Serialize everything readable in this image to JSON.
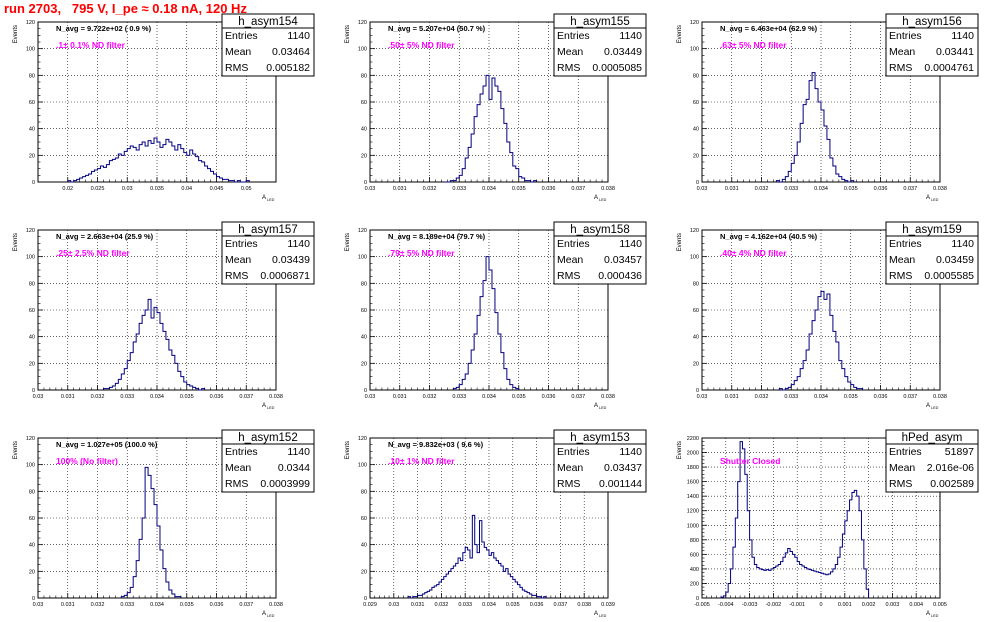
{
  "title": "run 2703,   795 V, I_pe ≈ 0.18 nA, 120 Hz",
  "axis_text": {
    "ylabel": "Events",
    "xlabel": "A",
    "xlabel_sub": "LED"
  },
  "colors": {
    "hist": "#000080",
    "annotation": "#ff00ff",
    "title": "#ff0000",
    "grid": "#000000"
  },
  "chart_data": [
    {
      "type": "histogram",
      "name": "h_asym154",
      "stats": {
        "entries_label": "Entries",
        "entries": "1140",
        "mean_label": "Mean",
        "mean": "0.03464",
        "rms_label": "RMS",
        "rms": "0.005182"
      },
      "navg": "N_avg = 9.722e+02 ( 0.9 %)",
      "filter": ".1± 0.1% ND filter",
      "xlim": [
        0.015,
        0.055
      ],
      "ylim": [
        0,
        120
      ],
      "xticks": [
        0.02,
        0.025,
        0.03,
        0.035,
        0.04,
        0.045,
        0.05
      ],
      "xtick_labels": [
        "0.02",
        "0.025",
        "0.03",
        "0.035",
        "0.04",
        "0.045",
        "0.05"
      ],
      "yticks": [
        0,
        20,
        40,
        60,
        80,
        100,
        120
      ],
      "ytick_labels": [
        "0",
        "20",
        "40",
        "60",
        "80",
        "100",
        "120"
      ],
      "bins": {
        "x0": 0.02,
        "width": 0.0005,
        "counts": [
          1,
          0,
          1,
          2,
          3,
          4,
          5,
          6,
          8,
          9,
          10,
          12,
          11,
          13,
          16,
          17,
          18,
          21,
          20,
          23,
          25,
          27,
          26,
          24,
          28,
          30,
          27,
          31,
          29,
          33,
          30,
          26,
          28,
          32,
          30,
          27,
          24,
          28,
          25,
          22,
          20,
          24,
          21,
          19,
          16,
          15,
          12,
          10,
          8,
          6,
          4,
          3,
          2,
          2,
          1,
          1,
          0,
          1,
          0,
          0,
          1
        ]
      }
    },
    {
      "type": "histogram",
      "name": "h_asym155",
      "stats": {
        "entries_label": "Entries",
        "entries": "1140",
        "mean_label": "Mean",
        "mean": "0.03449",
        "rms_label": "RMS",
        "rms": "0.0005085"
      },
      "navg": "N_avg = 5.207e+04 (50.7 %)",
      "filter": ".50± 5% ND filter",
      "xlim": [
        0.03,
        0.038
      ],
      "ylim": [
        0,
        120
      ],
      "xticks": [
        0.03,
        0.031,
        0.032,
        0.033,
        0.034,
        0.035,
        0.036,
        0.037,
        0.038
      ],
      "xtick_labels": [
        "0.03",
        "0.031",
        "0.032",
        "0.033",
        "0.034",
        "0.035",
        "0.036",
        "0.037",
        "0.038"
      ],
      "yticks": [
        0,
        20,
        40,
        60,
        80,
        100,
        120
      ],
      "ytick_labels": [
        "0",
        "20",
        "40",
        "60",
        "80",
        "100",
        "120"
      ],
      "bins": {
        "x0": 0.0325,
        "width": 0.0001,
        "counts": [
          0,
          0,
          1,
          1,
          3,
          5,
          10,
          18,
          26,
          36,
          49,
          58,
          66,
          72,
          80,
          62,
          78,
          72,
          68,
          55,
          44,
          30,
          22,
          12,
          10,
          4,
          3,
          1,
          1,
          0,
          1
        ]
      }
    },
    {
      "type": "histogram",
      "name": "h_asym156",
      "stats": {
        "entries_label": "Entries",
        "entries": "1140",
        "mean_label": "Mean",
        "mean": "0.03441",
        "rms_label": "RMS",
        "rms": "0.0004761"
      },
      "navg": "N_avg = 6.463e+04 (62.9 %)",
      "filter": ".63± 5% ND filter",
      "xlim": [
        0.03,
        0.038
      ],
      "ylim": [
        0,
        120
      ],
      "xticks": [
        0.03,
        0.031,
        0.032,
        0.033,
        0.034,
        0.035,
        0.036,
        0.037,
        0.038
      ],
      "xtick_labels": [
        "0.03",
        "0.031",
        "0.032",
        "0.033",
        "0.034",
        "0.035",
        "0.036",
        "0.037",
        "0.038"
      ],
      "yticks": [
        0,
        20,
        40,
        60,
        80,
        100,
        120
      ],
      "ytick_labels": [
        "0",
        "20",
        "40",
        "60",
        "80",
        "100",
        "120"
      ],
      "bins": {
        "x0": 0.0325,
        "width": 0.0001,
        "counts": [
          1,
          0,
          2,
          4,
          8,
          14,
          20,
          30,
          44,
          58,
          62,
          76,
          82,
          70,
          60,
          54,
          42,
          32,
          18,
          12,
          6,
          4,
          2,
          1,
          0,
          1
        ]
      }
    },
    {
      "type": "histogram",
      "name": "h_asym157",
      "stats": {
        "entries_label": "Entries",
        "entries": "1140",
        "mean_label": "Mean",
        "mean": "0.03439",
        "rms_label": "RMS",
        "rms": "0.0006871"
      },
      "navg": "N_avg = 2.663e+04 (25.9 %)",
      "filter": ".25± 2.5% ND filter",
      "xlim": [
        0.03,
        0.038
      ],
      "ylim": [
        0,
        120
      ],
      "xticks": [
        0.03,
        0.031,
        0.032,
        0.033,
        0.034,
        0.035,
        0.036,
        0.037,
        0.038
      ],
      "xtick_labels": [
        "0.03",
        "0.031",
        "0.032",
        "0.033",
        "0.034",
        "0.035",
        "0.036",
        "0.037",
        "0.038"
      ],
      "yticks": [
        0,
        20,
        40,
        60,
        80,
        100,
        120
      ],
      "ytick_labels": [
        "0",
        "20",
        "40",
        "60",
        "80",
        "100",
        "120"
      ],
      "bins": {
        "x0": 0.0322,
        "width": 0.0001,
        "counts": [
          1,
          1,
          2,
          3,
          5,
          8,
          12,
          16,
          22,
          28,
          36,
          42,
          50,
          56,
          60,
          68,
          54,
          62,
          58,
          50,
          44,
          38,
          30,
          26,
          20,
          14,
          10,
          6,
          4,
          3,
          2,
          1,
          0,
          1
        ]
      }
    },
    {
      "type": "histogram",
      "name": "h_asym158",
      "stats": {
        "entries_label": "Entries",
        "entries": "1140",
        "mean_label": "Mean",
        "mean": "0.03457",
        "rms_label": "RMS",
        "rms": "0.000436"
      },
      "navg": "N_avg = 8.189e+04 (79.7 %)",
      "filter": ".79± 5% ND filter",
      "xlim": [
        0.03,
        0.038
      ],
      "ylim": [
        0,
        120
      ],
      "xticks": [
        0.03,
        0.031,
        0.032,
        0.033,
        0.034,
        0.035,
        0.036,
        0.037,
        0.038
      ],
      "xtick_labels": [
        "0.03",
        "0.031",
        "0.032",
        "0.033",
        "0.034",
        "0.035",
        "0.036",
        "0.037",
        "0.038"
      ],
      "yticks": [
        0,
        20,
        40,
        60,
        80,
        100,
        120
      ],
      "ytick_labels": [
        "0",
        "20",
        "40",
        "60",
        "80",
        "100",
        "120"
      ],
      "bins": {
        "x0": 0.0328,
        "width": 0.0001,
        "counts": [
          1,
          2,
          4,
          8,
          12,
          20,
          30,
          42,
          56,
          70,
          82,
          100,
          90,
          76,
          58,
          42,
          28,
          16,
          8,
          4,
          2,
          1
        ]
      }
    },
    {
      "type": "histogram",
      "name": "h_asym159",
      "stats": {
        "entries_label": "Entries",
        "entries": "1140",
        "mean_label": "Mean",
        "mean": "0.03459",
        "rms_label": "RMS",
        "rms": "0.0005585"
      },
      "navg": "N_avg = 4.162e+04 (40.5 %)",
      "filter": ".40± 4% ND filter",
      "xlim": [
        0.03,
        0.038
      ],
      "ylim": [
        0,
        120
      ],
      "xticks": [
        0.03,
        0.031,
        0.032,
        0.033,
        0.034,
        0.035,
        0.036,
        0.037,
        0.038
      ],
      "xtick_labels": [
        "0.03",
        "0.031",
        "0.032",
        "0.033",
        "0.034",
        "0.035",
        "0.036",
        "0.037",
        "0.038"
      ],
      "yticks": [
        0,
        20,
        40,
        60,
        80,
        100,
        120
      ],
      "ytick_labels": [
        "0",
        "20",
        "40",
        "60",
        "80",
        "100",
        "120"
      ],
      "bins": {
        "x0": 0.0326,
        "width": 0.0001,
        "counts": [
          1,
          0,
          1,
          2,
          4,
          7,
          10,
          16,
          22,
          30,
          42,
          52,
          60,
          70,
          74,
          68,
          72,
          56,
          44,
          36,
          22,
          16,
          10,
          6,
          4,
          2,
          1,
          1
        ]
      }
    },
    {
      "type": "histogram",
      "name": "h_asym152",
      "stats": {
        "entries_label": "Entries",
        "entries": "1140",
        "mean_label": "Mean",
        "mean": "0.0344",
        "rms_label": "RMS",
        "rms": "0.0003999"
      },
      "navg": "N_avg = 1.027e+05 (100.0 %)",
      "filter": "100% (No filter)",
      "xlim": [
        0.03,
        0.038
      ],
      "ylim": [
        0,
        120
      ],
      "xticks": [
        0.03,
        0.031,
        0.032,
        0.033,
        0.034,
        0.035,
        0.036,
        0.037,
        0.038
      ],
      "xtick_labels": [
        "0.03",
        "0.031",
        "0.032",
        "0.033",
        "0.034",
        "0.035",
        "0.036",
        "0.037",
        "0.038"
      ],
      "yticks": [
        0,
        20,
        40,
        60,
        80,
        100,
        120
      ],
      "ytick_labels": [
        "0",
        "20",
        "40",
        "60",
        "80",
        "100",
        "120"
      ],
      "bins": {
        "x0": 0.0328,
        "width": 0.0001,
        "counts": [
          1,
          2,
          4,
          8,
          16,
          28,
          44,
          60,
          98,
          92,
          82,
          70,
          54,
          36,
          22,
          12,
          6,
          3,
          1,
          1
        ]
      }
    },
    {
      "type": "histogram",
      "name": "h_asym153",
      "stats": {
        "entries_label": "Entries",
        "entries": "1140",
        "mean_label": "Mean",
        "mean": "0.03437",
        "rms_label": "RMS",
        "rms": "0.001144"
      },
      "navg": "N_avg = 9.832e+03 ( 9.6 %)",
      "filter": ".10± 1% ND filter",
      "xlim": [
        0.029,
        0.039
      ],
      "ylim": [
        0,
        120
      ],
      "xticks": [
        0.029,
        0.03,
        0.031,
        0.032,
        0.033,
        0.034,
        0.035,
        0.036,
        0.037,
        0.038,
        0.039
      ],
      "xtick_labels": [
        "0.029",
        "0.03",
        "0.031",
        "0.032",
        "0.033",
        "0.034",
        "0.035",
        "0.036",
        "0.037",
        "0.038",
        "0.039"
      ],
      "yticks": [
        0,
        20,
        40,
        60,
        80,
        100,
        120
      ],
      "ytick_labels": [
        "0",
        "20",
        "40",
        "60",
        "80",
        "100",
        "120"
      ],
      "bins": {
        "x0": 0.0306,
        "width": 0.0001,
        "counts": [
          1,
          0,
          1,
          1,
          2,
          2,
          3,
          4,
          5,
          6,
          8,
          9,
          10,
          12,
          14,
          16,
          18,
          20,
          22,
          24,
          26,
          30,
          28,
          34,
          38,
          36,
          30,
          62,
          40,
          34,
          58,
          42,
          38,
          36,
          32,
          34,
          30,
          28,
          26,
          24,
          20,
          22,
          18,
          16,
          14,
          12,
          10,
          8,
          6,
          5,
          4,
          3,
          2,
          2,
          1,
          1,
          0,
          1
        ]
      }
    },
    {
      "type": "histogram",
      "name": "hPed_asym",
      "stats": {
        "entries_label": "Entries",
        "entries": "51897",
        "mean_label": "Mean",
        "mean": "2.016e-06",
        "rms_label": "RMS",
        "rms": "0.002589"
      },
      "navg": "",
      "filter": "Shutter Closed",
      "xlim": [
        -0.005,
        0.005
      ],
      "ylim": [
        0,
        2200
      ],
      "xticks": [
        -0.005,
        -0.004,
        -0.003,
        -0.002,
        -0.001,
        0,
        0.001,
        0.002,
        0.003,
        0.004,
        0.005
      ],
      "xtick_labels": [
        "-0.005",
        "-0.004",
        "-0.003",
        "-0.002",
        "-0.001",
        "0",
        "0.001",
        "0.002",
        "0.003",
        "0.004",
        "0.005"
      ],
      "yticks": [
        0,
        200,
        400,
        600,
        800,
        1000,
        1200,
        1400,
        1600,
        1800,
        2000,
        2200
      ],
      "ytick_labels": [
        "0",
        "200",
        "400",
        "600",
        "800",
        "1000",
        "1200",
        "1400",
        "1600",
        "1800",
        "2000",
        "2200"
      ],
      "bins": {
        "x0": -0.0042,
        "width": 0.0001,
        "counts": [
          10,
          30,
          80,
          200,
          400,
          700,
          1100,
          1600,
          2150,
          2050,
          1700,
          1200,
          800,
          560,
          460,
          420,
          400,
          390,
          380,
          390,
          380,
          400,
          420,
          440,
          460,
          500,
          560,
          620,
          680,
          640,
          600,
          560,
          500,
          460,
          440,
          420,
          400,
          390,
          380,
          370,
          360,
          350,
          340,
          330,
          320,
          330,
          360,
          400,
          460,
          560,
          700,
          880,
          1060,
          1200,
          1350,
          1450,
          1480,
          1400,
          1200,
          800,
          400,
          120
        ]
      }
    }
  ]
}
